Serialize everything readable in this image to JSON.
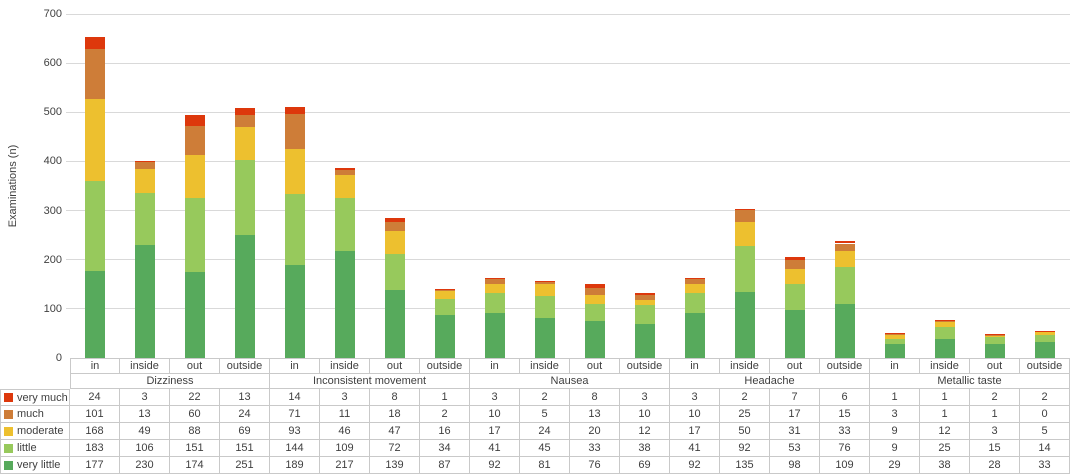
{
  "chart_data": {
    "type": "bar",
    "stacked": true,
    "title": "",
    "ylabel": "Examinations (n)",
    "ylim": [
      0,
      700
    ],
    "yticks": [
      0,
      100,
      200,
      300,
      400,
      500,
      600,
      700
    ],
    "grid": true,
    "legend_position": "table-left",
    "groups": [
      "Dizziness",
      "Inconsistent movement",
      "Nausea",
      "Headache",
      "Metallic taste"
    ],
    "subcategories": [
      "in",
      "inside",
      "out",
      "outside"
    ],
    "series": [
      {
        "name": "very much",
        "color": "#DD380C",
        "values": [
          24,
          3,
          22,
          13,
          14,
          3,
          8,
          1,
          3,
          2,
          8,
          3,
          3,
          2,
          7,
          6,
          1,
          1,
          2,
          2
        ]
      },
      {
        "name": "much",
        "color": "#CE7D38",
        "values": [
          101,
          13,
          60,
          24,
          71,
          11,
          18,
          2,
          10,
          5,
          13,
          10,
          10,
          25,
          17,
          15,
          3,
          1,
          1,
          0
        ]
      },
      {
        "name": "moderate",
        "color": "#EDC02F",
        "values": [
          168,
          49,
          88,
          69,
          93,
          46,
          47,
          16,
          17,
          24,
          20,
          12,
          17,
          50,
          31,
          33,
          9,
          12,
          3,
          5
        ]
      },
      {
        "name": "little",
        "color": "#97C95C",
        "values": [
          183,
          106,
          151,
          151,
          144,
          109,
          72,
          34,
          41,
          45,
          33,
          38,
          41,
          92,
          53,
          76,
          9,
          25,
          15,
          14
        ]
      },
      {
        "name": "very little",
        "color": "#57AA5C",
        "values": [
          177,
          230,
          174,
          251,
          189,
          217,
          139,
          87,
          92,
          81,
          76,
          69,
          92,
          135,
          98,
          109,
          29,
          38,
          28,
          33
        ]
      }
    ],
    "stack_order_bottom_to_top": [
      "very little",
      "little",
      "moderate",
      "much",
      "very much"
    ]
  },
  "colors": {
    "background": "#FFFFFF",
    "gridline": "#D9D9D9",
    "table_border": "#C9C9C9",
    "text": "#3F3F3F"
  }
}
